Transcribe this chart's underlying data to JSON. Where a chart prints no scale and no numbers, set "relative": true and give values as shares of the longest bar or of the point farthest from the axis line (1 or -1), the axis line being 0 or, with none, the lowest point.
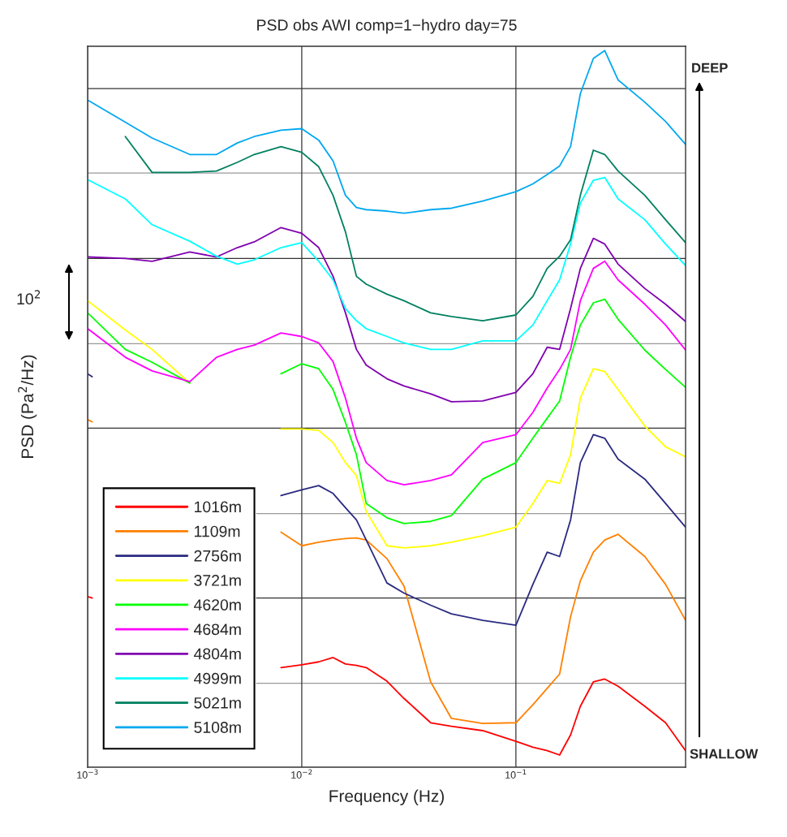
{
  "chart_data": {
    "type": "line",
    "title": "PSD obs AWI comp=1−hydro day=75",
    "xlabel": "Frequency (Hz)",
    "ylabel": "PSD (Pa$^{2}$/Hz)",
    "relative": true,
    "log": "x",
    "x": [
      0.001,
      0.0015,
      0.002,
      0.003,
      0.004,
      0.005,
      0.006,
      0.008,
      0.01,
      0.012,
      0.014,
      0.016,
      0.018,
      0.02,
      0.025,
      0.03,
      0.04,
      0.05,
      0.07,
      0.1,
      0.12,
      0.14,
      0.16,
      0.18,
      0.2,
      0.23,
      0.26,
      0.3,
      0.4,
      0.5,
      0.62
    ],
    "xlim": [
      0.001,
      0.62
    ],
    "xticks": [
      {
        "value": 0.001,
        "label": "10$^{−3}$"
      },
      {
        "value": 0.01,
        "label": "10$^{−2}$"
      },
      {
        "value": 0.1,
        "label": "10$^{−1}$"
      }
    ],
    "grid": "x",
    "legend": "bottom left",
    "marker": "none",
    "line_style": "solid",
    "series": [
      {
        "name": "1016m",
        "color": "#ff0000",
        "x": [
          0.001,
          0.00105,
          0.0015,
          0.002,
          0.003,
          0.004,
          0.005,
          0.006,
          0.008,
          0.01,
          0.012,
          0.014,
          0.016,
          0.018,
          0.02,
          0.025,
          0.03,
          0.04,
          0.05,
          0.07,
          0.1,
          0.12,
          0.14,
          0.16,
          0.18,
          0.2,
          0.23,
          0.26,
          0.3,
          0.4,
          0.5,
          0.62
        ],
        "values": [
          0.238,
          0.236,
          null,
          null,
          null,
          null,
          null,
          null,
          0.139,
          0.143,
          0.147,
          0.153,
          0.144,
          0.142,
          0.139,
          0.12,
          0.096,
          0.062,
          0.057,
          0.051,
          0.036,
          0.028,
          0.023,
          0.017,
          0.045,
          0.085,
          0.119,
          0.123,
          0.113,
          0.085,
          0.062,
          0.023
        ]
      },
      {
        "name": "1109m",
        "color": "#ff8000",
        "x": [
          0.001,
          0.00105,
          0.0015,
          0.002,
          0.003,
          0.004,
          0.005,
          0.006,
          0.008,
          0.01,
          0.012,
          0.014,
          0.016,
          0.018,
          0.02,
          0.025,
          0.03,
          0.04,
          0.05,
          0.07,
          0.1,
          0.12,
          0.14,
          0.16,
          0.18,
          0.2,
          0.23,
          0.26,
          0.3,
          0.4,
          0.5,
          0.62
        ],
        "values": [
          0.485,
          0.482,
          null,
          null,
          null,
          null,
          null,
          null,
          0.328,
          0.309,
          0.314,
          0.317,
          0.319,
          0.32,
          0.317,
          0.291,
          0.253,
          0.119,
          0.068,
          0.061,
          0.062,
          0.087,
          0.11,
          0.13,
          0.21,
          0.26,
          0.3,
          0.317,
          0.325,
          0.294,
          0.255,
          0.205
        ]
      },
      {
        "name": "2756m",
        "color": "#2a2a80",
        "x": [
          0.001,
          0.00105,
          0.0015,
          0.002,
          0.003,
          0.004,
          0.005,
          0.006,
          0.008,
          0.01,
          0.012,
          0.014,
          0.016,
          0.018,
          0.02,
          0.025,
          0.03,
          0.04,
          0.05,
          0.07,
          0.1,
          0.12,
          0.14,
          0.16,
          0.18,
          0.2,
          0.23,
          0.26,
          0.3,
          0.4,
          0.5,
          0.62
        ],
        "values": [
          0.549,
          0.545,
          null,
          null,
          null,
          null,
          null,
          null,
          0.379,
          0.387,
          0.393,
          0.382,
          0.362,
          0.345,
          0.317,
          0.257,
          0.243,
          0.226,
          0.214,
          0.205,
          0.198,
          0.255,
          0.3,
          0.294,
          0.345,
          0.425,
          0.464,
          0.459,
          0.43,
          0.402,
          0.368,
          0.335
        ]
      },
      {
        "name": "3721m",
        "color": "#ffff00",
        "values": [
          0.651,
          0.61,
          0.583,
          0.536,
          null,
          null,
          null,
          0.472,
          0.472,
          0.47,
          0.453,
          0.425,
          0.407,
          0.357,
          0.309,
          0.306,
          0.309,
          0.314,
          0.323,
          0.335,
          0.368,
          0.4,
          0.396,
          0.436,
          0.515,
          0.556,
          0.552,
          0.527,
          0.476,
          0.447,
          0.433
        ]
      },
      {
        "name": "4620m",
        "color": "#00ff00",
        "values": [
          0.634,
          0.583,
          0.565,
          0.536,
          null,
          null,
          null,
          0.549,
          0.563,
          0.556,
          0.527,
          0.481,
          0.436,
          0.368,
          0.348,
          0.34,
          0.343,
          0.351,
          0.402,
          0.425,
          0.459,
          0.487,
          0.511,
          0.572,
          0.617,
          0.648,
          0.653,
          0.625,
          0.582,
          0.555,
          0.53
        ]
      },
      {
        "name": "4684m",
        "color": "#ff00ff",
        "values": [
          0.612,
          0.572,
          0.553,
          0.538,
          0.572,
          0.583,
          0.589,
          0.606,
          0.601,
          0.592,
          0.566,
          0.515,
          0.459,
          0.425,
          0.4,
          0.394,
          0.4,
          0.408,
          0.453,
          0.464,
          0.495,
          0.529,
          0.555,
          0.583,
          0.651,
          0.696,
          0.706,
          0.68,
          0.646,
          0.617,
          0.582
        ]
      },
      {
        "name": "4804m",
        "color": "#8000b0",
        "values": [
          0.712,
          0.71,
          0.706,
          0.719,
          0.712,
          0.725,
          0.733,
          0.753,
          0.745,
          0.725,
          0.685,
          0.634,
          0.583,
          0.561,
          0.542,
          0.532,
          0.521,
          0.51,
          0.511,
          0.523,
          0.549,
          0.586,
          0.583,
          0.64,
          0.696,
          0.738,
          0.73,
          0.702,
          0.668,
          0.646,
          0.622
        ]
      },
      {
        "name": "4999m",
        "color": "#00ffff",
        "values": [
          0.82,
          0.793,
          0.757,
          0.734,
          0.713,
          0.702,
          0.708,
          0.725,
          0.732,
          0.706,
          0.68,
          0.64,
          0.623,
          0.612,
          0.601,
          0.592,
          0.583,
          0.583,
          0.595,
          0.595,
          0.617,
          0.651,
          0.68,
          0.73,
          0.787,
          0.819,
          0.823,
          0.793,
          0.764,
          0.73,
          0.7
        ]
      },
      {
        "name": "5021m",
        "color": "#008060",
        "values": [
          null,
          0.88,
          0.83,
          0.83,
          0.832,
          0.844,
          0.855,
          0.866,
          0.858,
          0.838,
          0.798,
          0.747,
          0.685,
          0.674,
          0.66,
          0.651,
          0.634,
          0.629,
          0.623,
          0.631,
          0.657,
          0.696,
          0.713,
          0.736,
          0.798,
          0.861,
          0.855,
          0.832,
          0.798,
          0.764,
          0.732
        ]
      },
      {
        "name": "5108m",
        "color": "#00a8f0",
        "values": [
          0.931,
          0.9,
          0.878,
          0.855,
          0.855,
          0.871,
          0.88,
          0.889,
          0.891,
          0.875,
          0.846,
          0.798,
          0.781,
          0.778,
          0.776,
          0.773,
          0.778,
          0.78,
          0.79,
          0.803,
          0.814,
          0.827,
          0.839,
          0.866,
          0.94,
          0.989,
          1.0,
          0.959,
          0.928,
          0.901,
          0.869
        ]
      }
    ],
    "ref_lines": [
      {
        "axis": "y",
        "value": 0.947,
        "color": "#333333"
      },
      {
        "axis": "y",
        "value": 0.829,
        "color": "#999999"
      },
      {
        "axis": "y",
        "value": 0.71,
        "color": "#333333"
      },
      {
        "axis": "y",
        "value": 0.591,
        "color": "#999999"
      },
      {
        "axis": "y",
        "value": 0.473,
        "color": "#333333"
      },
      {
        "axis": "y",
        "value": 0.354,
        "color": "#999999"
      },
      {
        "axis": "y",
        "value": 0.236,
        "color": "#333333"
      },
      {
        "axis": "y",
        "value": 0.117,
        "color": "#999999"
      }
    ],
    "annotations": [
      "10$^{2}$",
      "DEEP",
      "SHALLOW"
    ]
  }
}
